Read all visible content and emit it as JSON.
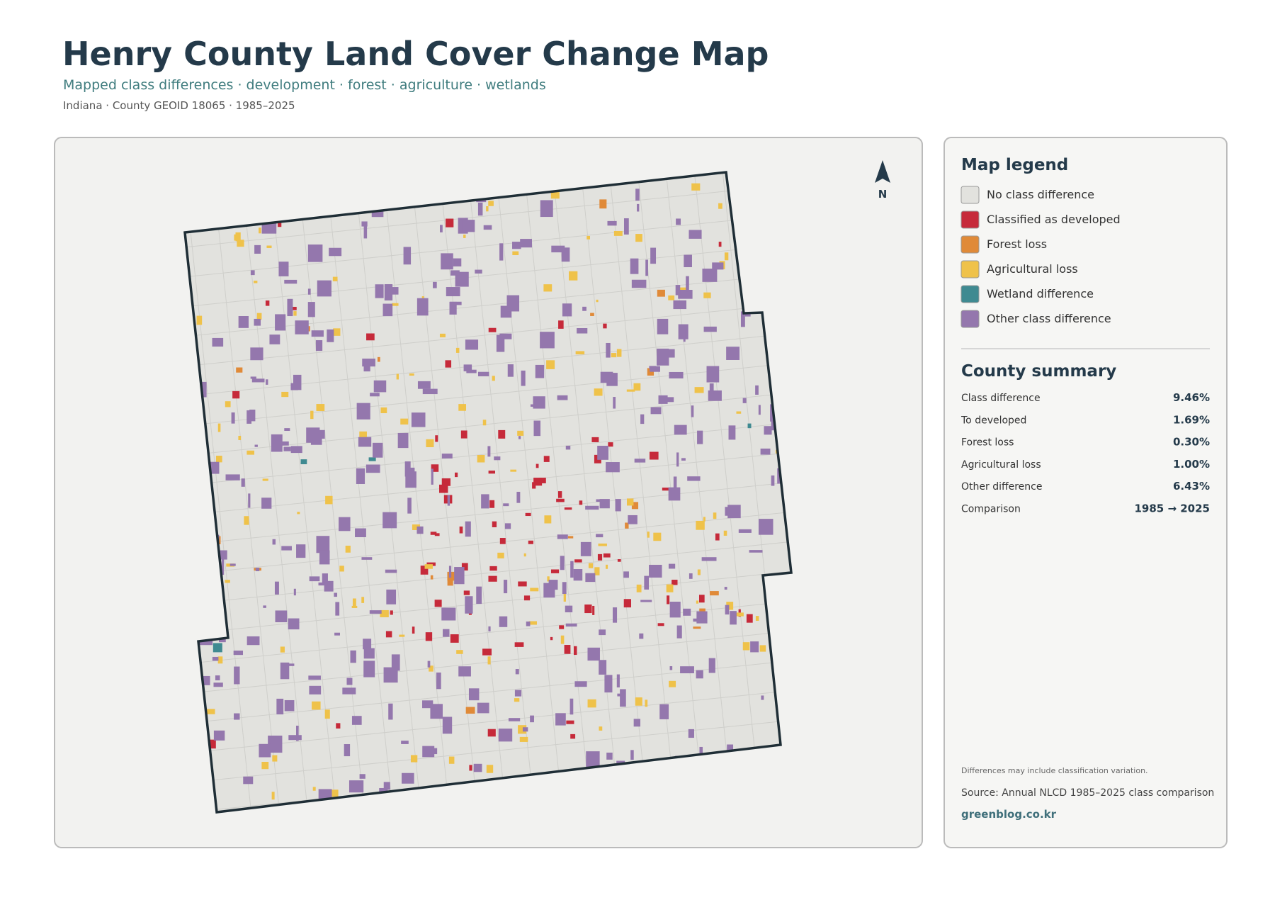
{
  "header": {
    "title": "Henry County Land Cover Change Map",
    "subtitle": "Mapped class differences · development · forest · agriculture · wetlands",
    "meta": "Indiana · County GEOID 18065 · 1985–2025"
  },
  "map": {
    "north_label": "N"
  },
  "legend": {
    "title": "Map legend",
    "items": [
      {
        "label": "No class difference",
        "color": "#e2e2de"
      },
      {
        "label": "Classified as developed",
        "color": "#c62a3a"
      },
      {
        "label": "Forest loss",
        "color": "#e08a38"
      },
      {
        "label": "Agricultural loss",
        "color": "#efc24a"
      },
      {
        "label": "Wetland difference",
        "color": "#3f8a91"
      },
      {
        "label": "Other class difference",
        "color": "#9477ad"
      }
    ]
  },
  "summary": {
    "title": "County summary",
    "rows": [
      [
        "Class difference",
        "9.46%"
      ],
      [
        "To developed",
        "1.69%"
      ],
      [
        "Forest loss",
        "0.30%"
      ],
      [
        "Agricultural loss",
        "1.00%"
      ],
      [
        "Other difference",
        "6.43%"
      ],
      [
        "Comparison",
        "1985 → 2025"
      ]
    ]
  },
  "footer": {
    "note": "Differences may include classification variation.",
    "source": "Source: Annual NLCD 1985–2025 class comparison",
    "credit": "greenblog.co.kr"
  }
}
